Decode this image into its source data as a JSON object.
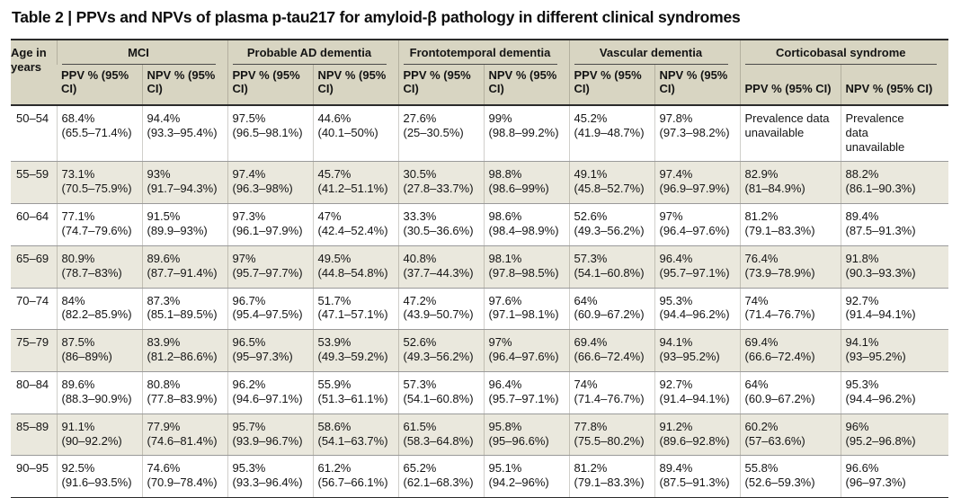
{
  "title": "Table 2 | PPVs and NPVs of plasma p-tau217 for amyloid-β pathology in different clinical syndromes",
  "table": {
    "age_header": "Age in years",
    "ppv_subheader": "PPV % (95% CI)",
    "npv_subheader": "NPV % (95% CI)",
    "groups": [
      {
        "label": "MCI"
      },
      {
        "label": "Probable AD dementia"
      },
      {
        "label": "Frontotemporal dementia"
      },
      {
        "label": "Vascular dementia"
      },
      {
        "label": "Corticobasal syndrome"
      }
    ],
    "column_order": [
      "MCI PPV",
      "MCI NPV",
      "Probable AD dementia PPV",
      "Probable AD dementia NPV",
      "Frontotemporal dementia PPV",
      "Frontotemporal dementia NPV",
      "Vascular dementia PPV",
      "Vascular dementia NPV",
      "Corticobasal syndrome PPV",
      "Corticobasal syndrome NPV"
    ],
    "colors": {
      "header_background": "#d8d5c2",
      "stripe_background": "#eae8dd",
      "text": "#141414"
    },
    "rows": [
      {
        "age": "50–54",
        "cells": [
          {
            "value": "68.4%",
            "ci": "(65.5–71.4%)"
          },
          {
            "value": "94.4%",
            "ci": "(93.3–95.4%)"
          },
          {
            "value": "97.5%",
            "ci": "(96.5–98.1%)"
          },
          {
            "value": "44.6%",
            "ci": "(40.1–50%)"
          },
          {
            "value": "27.6%",
            "ci": "(25–30.5%)"
          },
          {
            "value": "99%",
            "ci": "(98.8–99.2%)"
          },
          {
            "value": "45.2%",
            "ci": "(41.9–48.7%)"
          },
          {
            "value": "97.8%",
            "ci": "(97.3–98.2%)"
          },
          {
            "value": "Prevalence data unavailable",
            "ci": ""
          },
          {
            "value": "Prevalence data unavailable",
            "ci": ""
          }
        ]
      },
      {
        "age": "55–59",
        "cells": [
          {
            "value": "73.1%",
            "ci": "(70.5–75.9%)"
          },
          {
            "value": "93%",
            "ci": "(91.7–94.3%)"
          },
          {
            "value": "97.4%",
            "ci": "(96.3–98%)"
          },
          {
            "value": "45.7%",
            "ci": "(41.2–51.1%)"
          },
          {
            "value": "30.5%",
            "ci": "(27.8–33.7%)"
          },
          {
            "value": "98.8%",
            "ci": "(98.6–99%)"
          },
          {
            "value": "49.1%",
            "ci": "(45.8–52.7%)"
          },
          {
            "value": "97.4%",
            "ci": "(96.9–97.9%)"
          },
          {
            "value": "82.9%",
            "ci": "(81–84.9%)"
          },
          {
            "value": "88.2%",
            "ci": "(86.1–90.3%)"
          }
        ]
      },
      {
        "age": "60–64",
        "cells": [
          {
            "value": "77.1%",
            "ci": "(74.7–79.6%)"
          },
          {
            "value": "91.5%",
            "ci": "(89.9–93%)"
          },
          {
            "value": "97.3%",
            "ci": "(96.1–97.9%)"
          },
          {
            "value": "47%",
            "ci": "(42.4–52.4%)"
          },
          {
            "value": "33.3%",
            "ci": "(30.5–36.6%)"
          },
          {
            "value": "98.6%",
            "ci": "(98.4–98.9%)"
          },
          {
            "value": "52.6%",
            "ci": "(49.3–56.2%)"
          },
          {
            "value": "97%",
            "ci": "(96.4–97.6%)"
          },
          {
            "value": "81.2%",
            "ci": "(79.1–83.3%)"
          },
          {
            "value": "89.4%",
            "ci": "(87.5–91.3%)"
          }
        ]
      },
      {
        "age": "65–69",
        "cells": [
          {
            "value": "80.9%",
            "ci": "(78.7–83%)"
          },
          {
            "value": "89.6%",
            "ci": "(87.7–91.4%)"
          },
          {
            "value": "97%",
            "ci": "(95.7–97.7%)"
          },
          {
            "value": "49.5%",
            "ci": "(44.8–54.8%)"
          },
          {
            "value": "40.8%",
            "ci": "(37.7–44.3%)"
          },
          {
            "value": "98.1%",
            "ci": "(97.8–98.5%)"
          },
          {
            "value": "57.3%",
            "ci": "(54.1–60.8%)"
          },
          {
            "value": "96.4%",
            "ci": "(95.7–97.1%)"
          },
          {
            "value": "76.4%",
            "ci": "(73.9–78.9%)"
          },
          {
            "value": "91.8%",
            "ci": "(90.3–93.3%)"
          }
        ]
      },
      {
        "age": "70–74",
        "cells": [
          {
            "value": "84%",
            "ci": "(82.2–85.9%)"
          },
          {
            "value": "87.3%",
            "ci": "(85.1–89.5%)"
          },
          {
            "value": "96.7%",
            "ci": "(95.4–97.5%)"
          },
          {
            "value": "51.7%",
            "ci": "(47.1–57.1%)"
          },
          {
            "value": "47.2%",
            "ci": "(43.9–50.7%)"
          },
          {
            "value": "97.6%",
            "ci": "(97.1–98.1%)"
          },
          {
            "value": "64%",
            "ci": "(60.9–67.2%)"
          },
          {
            "value": "95.3%",
            "ci": "(94.4–96.2%)"
          },
          {
            "value": "74%",
            "ci": "(71.4–76.7%)"
          },
          {
            "value": "92.7%",
            "ci": "(91.4–94.1%)"
          }
        ]
      },
      {
        "age": "75–79",
        "cells": [
          {
            "value": "87.5%",
            "ci": "(86–89%)"
          },
          {
            "value": "83.9%",
            "ci": "(81.2–86.6%)"
          },
          {
            "value": "96.5%",
            "ci": "(95–97.3%)"
          },
          {
            "value": "53.9%",
            "ci": "(49.3–59.2%)"
          },
          {
            "value": "52.6%",
            "ci": "(49.3–56.2%)"
          },
          {
            "value": "97%",
            "ci": "(96.4–97.6%)"
          },
          {
            "value": "69.4%",
            "ci": "(66.6–72.4%)"
          },
          {
            "value": "94.1%",
            "ci": "(93–95.2%)"
          },
          {
            "value": "69.4%",
            "ci": "(66.6–72.4%)"
          },
          {
            "value": "94.1%",
            "ci": "(93–95.2%)"
          }
        ]
      },
      {
        "age": "80–84",
        "cells": [
          {
            "value": "89.6%",
            "ci": "(88.3–90.9%)"
          },
          {
            "value": "80.8%",
            "ci": "(77.8–83.9%)"
          },
          {
            "value": "96.2%",
            "ci": "(94.6–97.1%)"
          },
          {
            "value": "55.9%",
            "ci": "(51.3–61.1%)"
          },
          {
            "value": "57.3%",
            "ci": "(54.1–60.8%)"
          },
          {
            "value": "96.4%",
            "ci": "(95.7–97.1%)"
          },
          {
            "value": "74%",
            "ci": "(71.4–76.7%)"
          },
          {
            "value": "92.7%",
            "ci": "(91.4–94.1%)"
          },
          {
            "value": "64%",
            "ci": "(60.9–67.2%)"
          },
          {
            "value": "95.3%",
            "ci": "(94.4–96.2%)"
          }
        ]
      },
      {
        "age": "85–89",
        "cells": [
          {
            "value": "91.1%",
            "ci": "(90–92.2%)"
          },
          {
            "value": "77.9%",
            "ci": "(74.6–81.4%)"
          },
          {
            "value": "95.7%",
            "ci": "(93.9–96.7%)"
          },
          {
            "value": "58.6%",
            "ci": "(54.1–63.7%)"
          },
          {
            "value": "61.5%",
            "ci": "(58.3–64.8%)"
          },
          {
            "value": "95.8%",
            "ci": "(95–96.6%)"
          },
          {
            "value": "77.8%",
            "ci": "(75.5–80.2%)"
          },
          {
            "value": "91.2%",
            "ci": "(89.6–92.8%)"
          },
          {
            "value": "60.2%",
            "ci": "(57–63.6%)"
          },
          {
            "value": "96%",
            "ci": "(95.2–96.8%)"
          }
        ]
      },
      {
        "age": "90–95",
        "cells": [
          {
            "value": "92.5%",
            "ci": "(91.6–93.5%)"
          },
          {
            "value": "74.6%",
            "ci": "(70.9–78.4%)"
          },
          {
            "value": "95.3%",
            "ci": "(93.3–96.4%)"
          },
          {
            "value": "61.2%",
            "ci": "(56.7–66.1%)"
          },
          {
            "value": "65.2%",
            "ci": "(62.1–68.3%)"
          },
          {
            "value": "95.1%",
            "ci": "(94.2–96%)"
          },
          {
            "value": "81.2%",
            "ci": "(79.1–83.3%)"
          },
          {
            "value": "89.4%",
            "ci": "(87.5–91.3%)"
          },
          {
            "value": "55.8%",
            "ci": "(52.6–59.3%)"
          },
          {
            "value": "96.6%",
            "ci": "(96–97.3%)"
          }
        ]
      }
    ]
  }
}
